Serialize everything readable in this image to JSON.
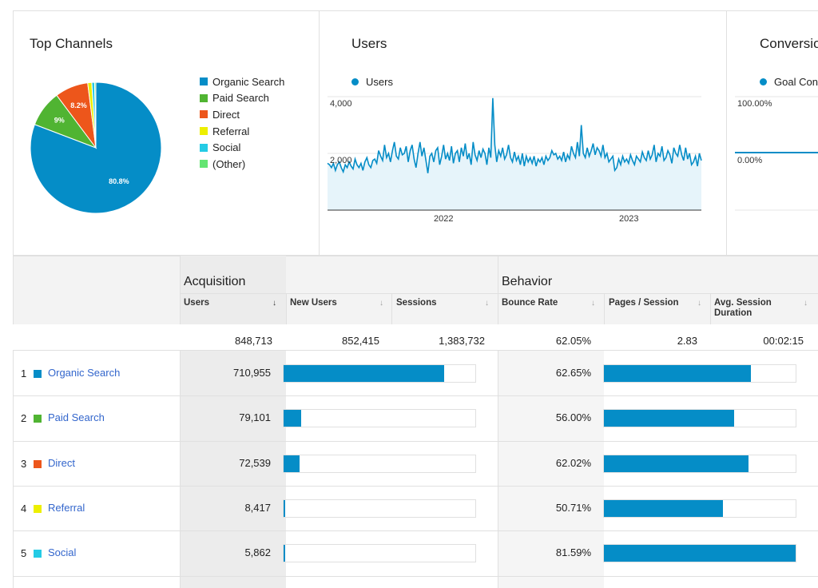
{
  "cards": {
    "top_channels": {
      "title": "Top Channels"
    },
    "users": {
      "title": "Users",
      "series": "Users",
      "y_ticks": [
        "4,000",
        "2,000"
      ],
      "x_ticks": [
        "2022",
        "2023"
      ]
    },
    "conversions": {
      "title": "Conversio",
      "series": "Goal Con",
      "y_ticks": [
        "100.00%",
        "0.00%"
      ]
    }
  },
  "chart_data": [
    {
      "type": "pie",
      "title": "Top Channels",
      "labels": [
        "Organic Search",
        "Paid Search",
        "Direct",
        "Referral",
        "Social",
        "(Other)"
      ],
      "values": [
        80.8,
        9.0,
        8.2,
        1.0,
        0.7,
        0.3
      ],
      "slice_labels": [
        "80.8%",
        "9%",
        "8.2%",
        "",
        "",
        ""
      ],
      "colors": [
        "#058dc7",
        "#50b432",
        "#ed561b",
        "#edef00",
        "#24cbe5",
        "#64e572"
      ],
      "legend": "right"
    },
    {
      "type": "area",
      "title": "Users",
      "series": [
        {
          "name": "Users",
          "color": "#058dc7"
        }
      ],
      "x_start": "2021-06",
      "x_end": "2023-05",
      "x_ticks": [
        "2022",
        "2023"
      ],
      "ylim": [
        0,
        4000
      ],
      "y_ticks": [
        2000,
        4000
      ],
      "values": [
        1650,
        1600,
        1500,
        1650,
        1400,
        1600,
        1700,
        1500,
        1350,
        1600,
        1500,
        1700,
        1550,
        1450,
        1800,
        1600,
        1500,
        1650,
        1400,
        1700,
        1850,
        1600,
        1500,
        1750,
        1800,
        1650,
        2100,
        1900,
        1750,
        2300,
        1850,
        2000,
        1700,
        2100,
        2400,
        1900,
        1800,
        2200,
        1950,
        2000,
        2250,
        1700,
        2100,
        2300,
        1800,
        1500,
        2000,
        2400,
        1900,
        2200,
        1750,
        1300,
        1900,
        2000,
        1700,
        2100,
        2200,
        1600,
        1900,
        2300,
        1800,
        2000,
        1750,
        2250,
        1650,
        2000,
        2100,
        1700,
        2200,
        1900,
        2350,
        1800,
        2000,
        1600,
        2400,
        1950,
        1750,
        2100,
        1850,
        2150,
        2000,
        1600,
        2200,
        1850,
        3950,
        2300,
        1700,
        2100,
        1900,
        2200,
        1800,
        1950,
        2300,
        1850,
        1700,
        2050,
        1750,
        1900,
        1600,
        2000,
        1550,
        1900,
        1700,
        1850,
        1650,
        1900,
        1550,
        1800,
        1700,
        1850,
        1600,
        1900,
        1750,
        1850,
        2100,
        1950,
        2000,
        1800,
        1900,
        1750,
        2050,
        1700,
        1950,
        1800,
        2250,
        2000,
        1850,
        2400,
        1900,
        3000,
        2000,
        1850,
        2200,
        1900,
        2100,
        2350,
        1950,
        2200,
        2100,
        1900,
        2300,
        1850,
        2000,
        1700,
        1800,
        1900,
        1400,
        1500,
        1800,
        1600,
        1900,
        1700,
        1800,
        1650,
        1950,
        1750,
        1600,
        1900,
        1800,
        1700,
        2050,
        1850,
        1750,
        2100,
        1800,
        1950,
        2300,
        1700,
        2000,
        1900,
        2250,
        1750,
        1850,
        2100,
        1950,
        1650,
        2200,
        2000,
        1900,
        2300,
        1950,
        1750,
        2200,
        1800,
        2000,
        1600,
        1700,
        1900,
        1550,
        2000,
        1750
      ]
    },
    {
      "type": "line",
      "title": "Conversio",
      "series": [
        {
          "name": "Goal Con",
          "color": "#058dc7"
        }
      ],
      "ylim": [
        0,
        100
      ],
      "y_ticks": [
        "0.00%",
        "100.00%"
      ],
      "values": [
        0,
        0
      ]
    }
  ],
  "table": {
    "groups": {
      "acquisition": "Acquisition",
      "behavior": "Behavior"
    },
    "columns": {
      "users": "Users",
      "new_users": "New Users",
      "sessions": "Sessions",
      "bounce_rate": "Bounce Rate",
      "pages_session": "Pages / Session",
      "avg_session_1": "Avg. Session",
      "avg_session_2": "Duration"
    },
    "sort_arrow": "↓",
    "totals": {
      "users": "848,713",
      "new_users": "852,415",
      "sessions": "1,383,732",
      "bounce_rate": "62.05%",
      "pages_session": "2.83",
      "avg_session": "00:02:15"
    },
    "rows": [
      {
        "num": "1",
        "channel": "Organic Search",
        "color": "#058dc7",
        "users": "710,955",
        "users_share": 0.837,
        "bounce_rate": "62.65%",
        "bounce_share": 0.765
      },
      {
        "num": "2",
        "channel": "Paid Search",
        "color": "#50b432",
        "users": "79,101",
        "users_share": 0.093,
        "bounce_rate": "56.00%",
        "bounce_share": 0.68
      },
      {
        "num": "3",
        "channel": "Direct",
        "color": "#ed561b",
        "users": "72,539",
        "users_share": 0.085,
        "bounce_rate": "62.02%",
        "bounce_share": 0.755
      },
      {
        "num": "4",
        "channel": "Referral",
        "color": "#edef00",
        "users": "8,417",
        "users_share": 0.01,
        "bounce_rate": "50.71%",
        "bounce_share": 0.62
      },
      {
        "num": "5",
        "channel": "Social",
        "color": "#24cbe5",
        "users": "5,862",
        "users_share": 0.007,
        "bounce_rate": "81.59%",
        "bounce_share": 1.0
      }
    ]
  }
}
